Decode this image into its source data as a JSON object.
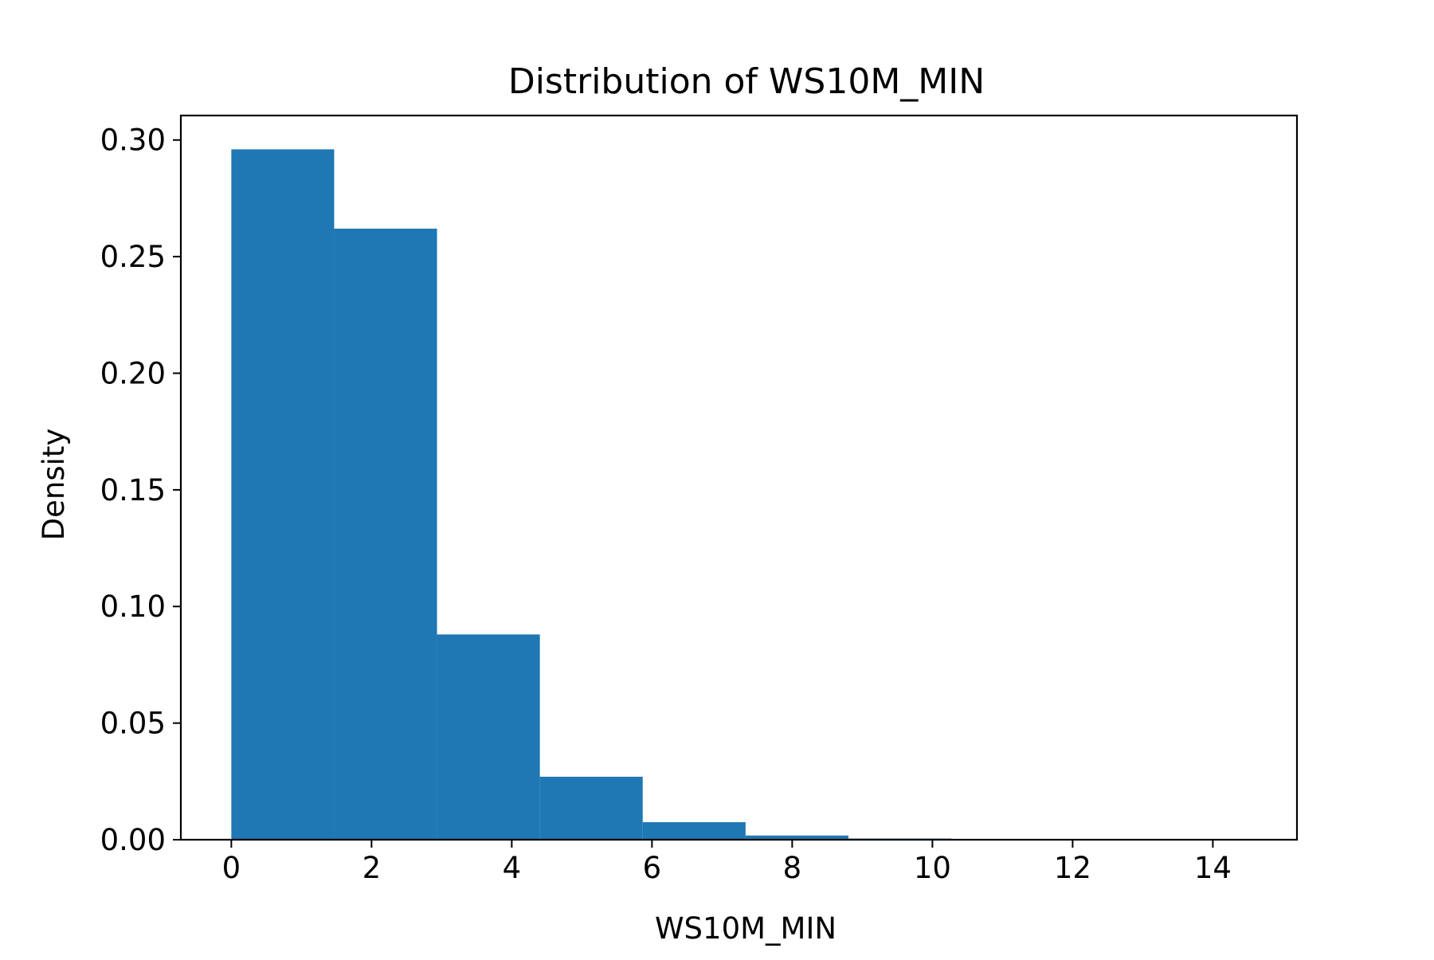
{
  "chart_data": {
    "type": "bar",
    "title": "Distribution of WS10M_MIN",
    "xlabel": "WS10M_MIN",
    "ylabel": "Density",
    "bar_color": "#1f77b4",
    "xlim": [
      -0.72,
      15.2
    ],
    "ylim": [
      0,
      0.3105
    ],
    "xticks": [
      0,
      2,
      4,
      6,
      8,
      10,
      12,
      14
    ],
    "yticks": [
      0.0,
      0.05,
      0.1,
      0.15,
      0.2,
      0.25,
      0.3
    ],
    "ytick_labels": [
      "0.00",
      "0.05",
      "0.10",
      "0.15",
      "0.20",
      "0.25",
      "0.30"
    ],
    "bins": [
      {
        "x0": 0.0,
        "x1": 1.467,
        "value": 0.296
      },
      {
        "x0": 1.467,
        "x1": 2.934,
        "value": 0.262
      },
      {
        "x0": 2.934,
        "x1": 4.401,
        "value": 0.088
      },
      {
        "x0": 4.401,
        "x1": 5.868,
        "value": 0.027
      },
      {
        "x0": 5.868,
        "x1": 7.335,
        "value": 0.0075
      },
      {
        "x0": 7.335,
        "x1": 8.802,
        "value": 0.0018
      },
      {
        "x0": 8.802,
        "x1": 10.269,
        "value": 0.0005
      },
      {
        "x0": 10.269,
        "x1": 11.736,
        "value": 0.0001
      },
      {
        "x0": 11.736,
        "x1": 13.203,
        "value": 3e-05
      },
      {
        "x0": 13.203,
        "x1": 14.67,
        "value": 1e-05
      }
    ],
    "grid": false,
    "legend": "none"
  }
}
